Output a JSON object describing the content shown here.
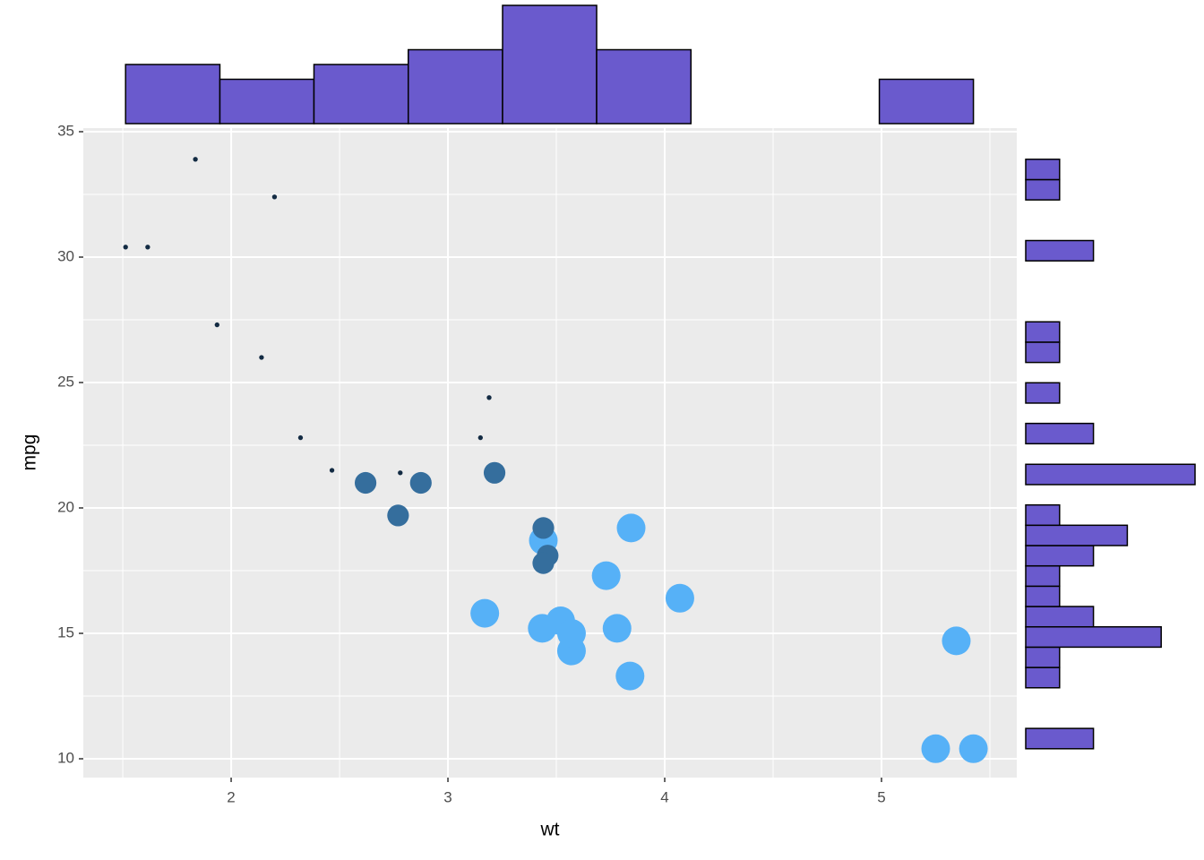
{
  "chart_data": [
    {
      "type": "scatter",
      "x_label": "wt",
      "y_label": "mpg",
      "x": [
        2.62,
        2.875,
        2.32,
        3.215,
        3.44,
        3.46,
        3.57,
        3.19,
        3.15,
        3.44,
        3.44,
        4.07,
        3.73,
        3.78,
        5.25,
        5.424,
        5.345,
        2.2,
        1.615,
        1.835,
        2.465,
        3.52,
        3.435,
        3.84,
        3.845,
        1.935,
        2.14,
        1.513,
        3.17,
        2.77,
        3.57,
        2.78
      ],
      "y": [
        21.0,
        21.0,
        22.8,
        21.4,
        18.7,
        18.1,
        14.3,
        24.4,
        22.8,
        19.2,
        17.8,
        16.4,
        17.3,
        15.2,
        10.4,
        10.4,
        14.7,
        32.4,
        30.4,
        33.9,
        21.5,
        15.5,
        15.2,
        13.3,
        19.2,
        27.3,
        26.0,
        30.4,
        15.8,
        19.7,
        15.0,
        21.4
      ],
      "size": [
        6,
        6,
        4,
        6,
        8,
        6,
        8,
        4,
        4,
        6,
        6,
        8,
        8,
        8,
        8,
        8,
        8,
        4,
        4,
        4,
        4,
        8,
        8,
        8,
        8,
        4,
        4,
        4,
        8,
        6,
        8,
        4
      ],
      "size_lim": [
        4,
        8
      ],
      "color_scale": [
        "#132B43",
        "#56B1F7"
      ],
      "xlim": [
        1.318,
        5.624
      ],
      "xticks": [
        2,
        3,
        4,
        5
      ],
      "x_minor_ticks": [
        1.5,
        2.5,
        3.5,
        4.5,
        5.5
      ],
      "ylim": [
        9.25,
        35.143
      ],
      "yticks": [
        10,
        15,
        20,
        25,
        30,
        35
      ],
      "y_minor_ticks": [
        12.5,
        17.5,
        22.5,
        27.5,
        32.5
      ],
      "grid": true
    },
    {
      "type": "histogram",
      "orientation": "vertical",
      "color": "#6A5ACD",
      "bins": [
        1.513,
        1.948,
        2.382,
        2.817,
        3.252,
        3.686,
        4.121,
        4.555,
        4.99,
        5.424
      ],
      "counts": [
        4,
        3,
        4,
        5,
        8,
        5,
        0,
        0,
        3
      ],
      "count_lim": [
        0,
        8
      ]
    },
    {
      "type": "histogram",
      "orientation": "horizontal",
      "color": "#6A5ACD",
      "bins": [
        10.4,
        11.21,
        12.02,
        12.83,
        13.64,
        14.45,
        15.26,
        16.07,
        16.88,
        17.69,
        18.5,
        19.31,
        20.12,
        20.93,
        21.74,
        22.56,
        23.37,
        24.18,
        24.99,
        25.8,
        26.61,
        27.42,
        28.23,
        29.04,
        29.85,
        30.66,
        31.47,
        32.28,
        33.09,
        33.9
      ],
      "counts": [
        2,
        0,
        0,
        1,
        1,
        4,
        2,
        1,
        1,
        2,
        3,
        1,
        0,
        5,
        0,
        2,
        0,
        1,
        0,
        1,
        1,
        0,
        0,
        0,
        2,
        0,
        0,
        1,
        1
      ],
      "count_lim": [
        0,
        5
      ]
    }
  ]
}
